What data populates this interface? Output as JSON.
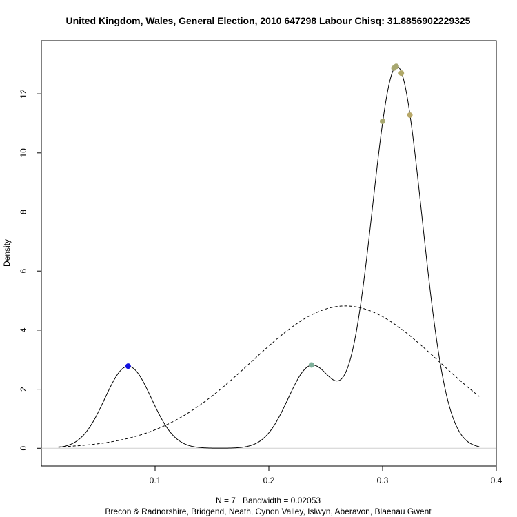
{
  "chart_data": {
    "type": "line",
    "title": "United Kingdom, Wales, General Election, 2010 647298 Labour Chisq: 31.8856902229325",
    "xlabel": "N = 7   Bandwidth = 0.02053",
    "ylabel": "Density",
    "sub": "Brecon & Radnorshire, Bridgend, Neath, Cynon Valley, Islwyn, Aberavon, Blaenau Gwent",
    "xlim": [
      0.0,
      0.4
    ],
    "ylim": [
      -0.6,
      13.8
    ],
    "x_ticks": [
      0.1,
      0.2,
      0.3,
      0.4
    ],
    "x_tick_labels": [
      "0.1",
      "0.2",
      "0.3",
      "0.4"
    ],
    "y_ticks": [
      0,
      2,
      4,
      6,
      8,
      10,
      12
    ],
    "y_tick_labels": [
      "0",
      "2",
      "4",
      "6",
      "8",
      "10",
      "12"
    ],
    "grid": false,
    "bandwidth": 0.02053,
    "curve_range": [
      0.015,
      0.385
    ],
    "points": [
      {
        "x": 0.0763,
        "y": 2.78,
        "color": "#1010e0"
      },
      {
        "x": 0.2375,
        "y": 2.82,
        "color": "#7fb09a"
      },
      {
        "x": 0.3,
        "y": 11.07,
        "color": "#a8a870"
      },
      {
        "x": 0.31,
        "y": 12.87,
        "color": "#a8a870"
      },
      {
        "x": 0.312,
        "y": 12.93,
        "color": "#a8a870"
      },
      {
        "x": 0.3165,
        "y": 12.7,
        "color": "#b0a868"
      },
      {
        "x": 0.324,
        "y": 11.28,
        "color": "#b8a868"
      }
    ],
    "series": [
      {
        "style": "solid",
        "kind": "kernel-density"
      },
      {
        "style": "dashed",
        "kind": "normal",
        "mean": 0.2673,
        "sd": 0.0828
      }
    ]
  }
}
